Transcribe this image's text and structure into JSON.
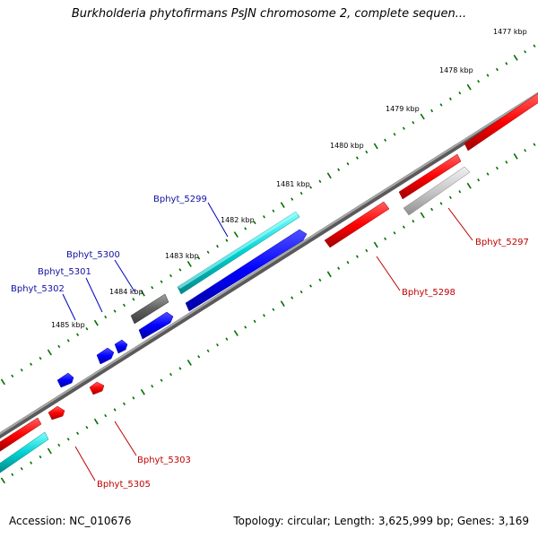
{
  "title": "Burkholderia phytofirmans PsJN chromosome 2, complete sequen...",
  "footer": {
    "accession": "Accession: NC_010676",
    "summary": "Topology: circular; Length: 3,625,999 bp; Genes: 3,169"
  },
  "ticks": [
    {
      "label": "1477 kbp"
    },
    {
      "label": "1478 kbp"
    },
    {
      "label": "1479 kbp"
    },
    {
      "label": "1480 kbp"
    },
    {
      "label": "1481 kbp"
    },
    {
      "label": "1482 kbp"
    },
    {
      "label": "1483 kbp"
    },
    {
      "label": "1484 kbp"
    },
    {
      "label": "1485 kbp"
    }
  ],
  "gene_labels": {
    "Bphyt_5299": "Bphyt_5299",
    "Bphyt_5300": "Bphyt_5300",
    "Bphyt_5301": "Bphyt_5301",
    "Bphyt_5302": "Bphyt_5302",
    "Bphyt_5297": "Bphyt_5297",
    "Bphyt_5298": "Bphyt_5298",
    "Bphyt_5303": "Bphyt_5303",
    "Bphyt_5305": "Bphyt_5305"
  },
  "colors": {
    "backbone": "#808080",
    "tick": "#007000",
    "gene_red": "#ff0000",
    "gene_blue": "#0000ff",
    "gene_cyan": "#00cccc",
    "gene_gray": "#606060",
    "gene_lightgray": "#c0c0c0"
  }
}
